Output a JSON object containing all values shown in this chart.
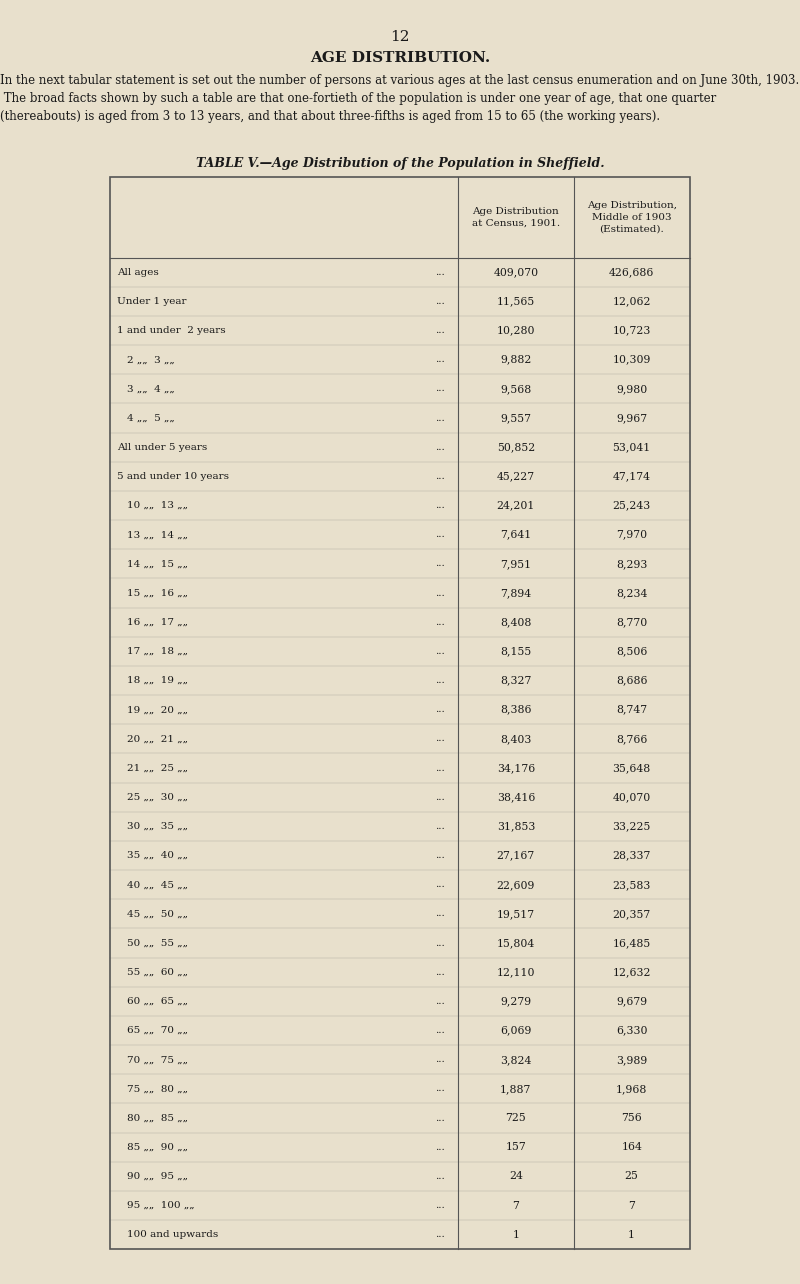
{
  "page_number": "12",
  "section_title": "AGE DISTRIBUTION.",
  "intro_text": "In the next tabular statement is set out the number of persons at various ages at the last census enumeration and on June 30th, 1903.  The broad facts shown by such a table are that one-fortieth of the population is under one year of age, that one quarter (thereabouts) is aged from 3 to 13 years, and that about three-fifths is aged from 15 to 65 (the working years).",
  "table_title": "TABLE V.—Age Distribution of the Population in Sheffield.",
  "col1_header": "Age Distribution\nat Census, 1901.",
  "col2_header": "Age Distribution,\nMiddle of 1903\n(Estimated).",
  "rows": [
    [
      "All ages  ...   ...   ...   ...   ...",
      "409,070",
      "426,686"
    ],
    [
      "Under 1 year   ...   ...   ...   ...",
      "11,565",
      "12,062"
    ],
    [
      "1 and under  2 years   ...   ...   ...",
      "10,280",
      "10,723"
    ],
    [
      "2 „„  3 „„   ...   ...   ...",
      "9,882",
      "10,309"
    ],
    [
      "3 „„  4 „„   ...   ...   ...",
      "9,568",
      "9,980"
    ],
    [
      "4 „„  5 „„   ...   ...   ...",
      "9,557",
      "9,967"
    ],
    [
      "All under 5 years   ..   ...   ...",
      "50,852",
      "53,041"
    ],
    [
      "5 and under 10 years   ...   ...   ...",
      "45,227",
      "47,174"
    ],
    [
      "10 „„  13 „„   ...   ...   ..",
      "24,201",
      "25,243"
    ],
    [
      "13 „„  14 „„   ...   ...   ..",
      "7,641",
      "7,970"
    ],
    [
      "14 „„  15 „„   ...   ...   ...",
      "7,951",
      "8,293"
    ],
    [
      "15 „„  16 „„   ...   ...",
      "7,894",
      "8,234"
    ],
    [
      "16 „„  17 „„   ...   ...",
      "8,408",
      "8,770"
    ],
    [
      "17 „„  18 „„   ...   ...   ..",
      "8,155",
      "8,506"
    ],
    [
      "18 „„  19 „„   ...   ...   ...",
      "8,327",
      "8,686"
    ],
    [
      "19 „„  20 „„   ...   ...   ...",
      "8,386",
      "8,747"
    ],
    [
      "20 „„  21 „„   ...   ...   ...",
      "8,403",
      "8,766"
    ],
    [
      "21 „„  25 „„   ...   ...   ...",
      "34,176",
      "35,648"
    ],
    [
      "25 „„  30 „„   ...   ...   ...",
      "38,416",
      "40,070"
    ],
    [
      "30 „„  35 „„   ...   ...   ...",
      "31,853",
      "33,225"
    ],
    [
      "35 „„  40 „„   ...   ...   ...",
      "27,167",
      "28,337"
    ],
    [
      "40 „„  45 „„   ...   ...   ...",
      "22,609",
      "23,583"
    ],
    [
      "45 „„  50 „„   ...   ...   ...",
      "19,517",
      "20,357"
    ],
    [
      "50 „„  55 „„   ...   ...   ...",
      "15,804",
      "16,485"
    ],
    [
      "55 „„  60 „„   ...   ...   ...",
      "12,110",
      "12,632"
    ],
    [
      "60 „„  65 „„   ...   ...   ...",
      "9,279",
      "9,679"
    ],
    [
      "65 „„  70 „„   ...   ...   ...",
      "6,069",
      "6,330"
    ],
    [
      "70 „„  75 „„   ...   ...   ...",
      "3,824",
      "3,989"
    ],
    [
      "75 „„  80 „„   ...   ...   ...",
      "1,887",
      "1,968"
    ],
    [
      "80 „„  85 „„   ...   ...   ...",
      "725",
      "756"
    ],
    [
      "85 „„  90 „„   ...   ...   ...",
      "157",
      "164"
    ],
    [
      "90 „„  95 „„   ...   ...   ...",
      "24",
      "25"
    ],
    [
      "95 „„  100 „„   ...   ...   ...",
      "7",
      "7"
    ],
    [
      "100 and upwards   ...   ...   ...",
      "1",
      "1"
    ]
  ],
  "bg_color": "#e8e0cc",
  "text_color": "#1a1a1a",
  "table_bg": "#e8e0cc",
  "border_color": "#555555"
}
